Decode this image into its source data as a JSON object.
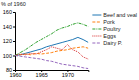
{
  "chart_data": {
    "type": "line",
    "ylabel": "% of 1960",
    "x": [
      1960,
      1961,
      1962,
      1963,
      1964,
      1965,
      1966,
      1967,
      1968,
      1969,
      1970,
      1971,
      1972,
      1973,
      1974
    ],
    "series": [
      {
        "name": "Beef and veal",
        "line_style": "solid",
        "values": [
          100,
          101,
          103,
          105,
          107,
          109,
          112,
          114,
          116,
          118,
          120,
          122,
          125,
          122,
          118
        ]
      },
      {
        "name": "Pork",
        "line_style": "dashed",
        "values": [
          100,
          101,
          102,
          101,
          103,
          102,
          103,
          104,
          106,
          107,
          108,
          110,
          111,
          112,
          110
        ]
      },
      {
        "name": "Poultry",
        "line_style": "dashdot",
        "values": [
          100,
          104,
          108,
          113,
          118,
          122,
          126,
          130,
          135,
          138,
          140,
          143,
          145,
          143,
          140
        ]
      },
      {
        "name": "Eggs",
        "line_style": "dotted",
        "values": [
          100,
          102,
          101,
          103,
          102,
          105,
          108,
          112,
          110,
          108,
          115,
          108,
          105,
          98,
          95
        ]
      },
      {
        "name": "Dairy P.",
        "line_style": "dashed",
        "values": [
          100,
          99,
          98,
          97,
          96,
          95,
          93,
          92,
          90,
          88,
          87,
          86,
          85,
          83,
          82
        ]
      }
    ],
    "xlim": [
      1960,
      1974
    ],
    "ylim": [
      80,
      160
    ],
    "xticks": [
      1960,
      1965,
      1970
    ],
    "yticks": [
      80,
      100,
      120,
      140,
      160
    ],
    "grid": false,
    "legend": "right"
  }
}
